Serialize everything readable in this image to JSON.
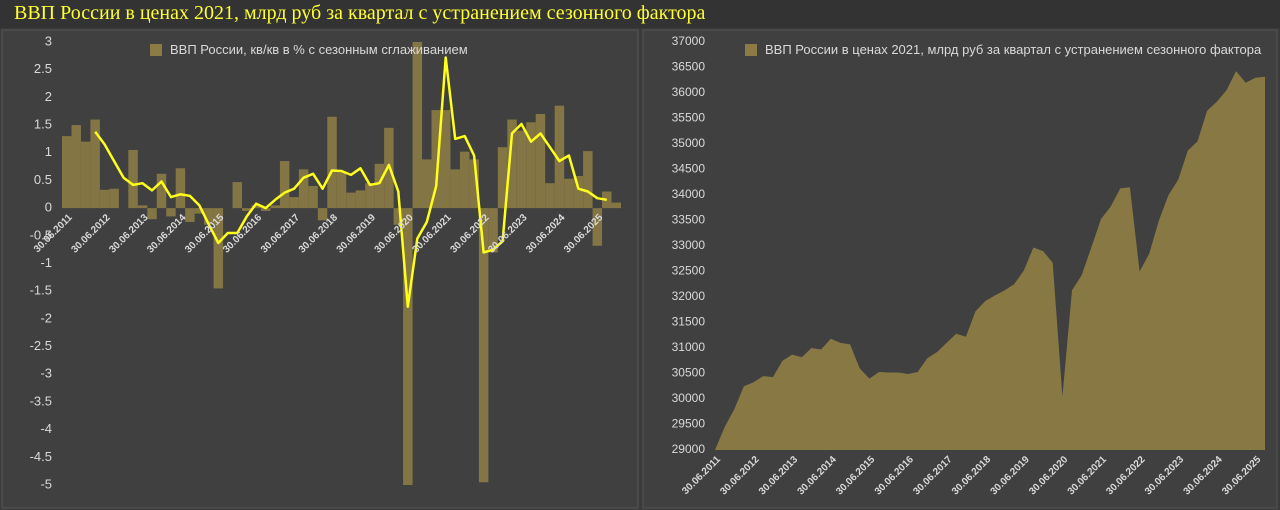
{
  "header": {
    "title": "ВВП России в ценах 2021, млрд руб за квартал с устранением сезонного фактора"
  },
  "chart_data": [
    {
      "type": "bar",
      "categories": [
        "30.06.2011",
        null,
        null,
        null,
        "30.06.2012",
        null,
        null,
        null,
        "30.06.2013",
        null,
        null,
        null,
        "30.06.2014",
        null,
        null,
        null,
        "30.06.2015",
        null,
        null,
        null,
        "30.06.2016",
        null,
        null,
        null,
        "30.06.2017",
        null,
        null,
        null,
        "30.06.2018",
        null,
        null,
        null,
        "30.06.2019",
        null,
        null,
        null,
        "30.06.2020",
        null,
        null,
        null,
        "30.06.2021",
        null,
        null,
        null,
        "30.06.2022",
        null,
        null,
        null,
        "30.06.2023",
        null,
        null,
        null,
        "30.06.2024",
        null,
        null,
        null,
        "30.06.2025",
        null,
        null
      ],
      "series": [
        {
          "name": "ВВП России, кв/кв в % с сезонным сглаживанием",
          "type": "bar",
          "color": "#8c7b45",
          "values": [
            1.3,
            1.5,
            1.2,
            1.6,
            0.33,
            0.35,
            0.0,
            1.05,
            0.05,
            -0.2,
            0.62,
            -0.15,
            0.72,
            -0.25,
            -0.1,
            -0.3,
            -1.45,
            0.0,
            0.47,
            -0.05,
            0.05,
            -0.05,
            0.05,
            0.85,
            0.2,
            0.7,
            0.4,
            -0.22,
            1.65,
            0.65,
            0.28,
            0.32,
            0.45,
            0.8,
            1.45,
            -0.3,
            -5.0,
            3.0,
            0.88,
            1.77,
            1.77,
            0.7,
            1.02,
            0.88,
            -4.95,
            -0.8,
            1.1,
            1.6,
            1.4,
            1.55,
            1.7,
            0.45,
            1.85,
            0.53,
            0.58,
            1.03,
            -0.68,
            0.3,
            0.1
          ]
        },
        {
          "type": "line",
          "color": "#ffff1a",
          "values": [
            null,
            null,
            null,
            1.38,
            1.15,
            0.85,
            0.55,
            0.42,
            0.45,
            0.32,
            0.48,
            0.2,
            0.25,
            0.22,
            0.05,
            -0.3,
            -0.63,
            -0.45,
            -0.45,
            -0.15,
            0.08,
            0.0,
            0.15,
            0.28,
            0.35,
            0.55,
            0.62,
            0.35,
            0.68,
            0.67,
            0.6,
            0.72,
            0.42,
            0.45,
            0.78,
            0.3,
            -1.78,
            -0.55,
            -0.25,
            0.4,
            2.72,
            1.25,
            1.3,
            0.95,
            -0.8,
            -0.75,
            -0.6,
            1.35,
            1.52,
            1.2,
            1.35,
            1.1,
            0.85,
            0.95,
            0.35,
            0.3,
            0.18,
            0.15,
            null
          ]
        }
      ],
      "ylim": [
        -5,
        3
      ],
      "yticks": [
        -5,
        -4.5,
        -4,
        -3.5,
        -3,
        -2.5,
        -2,
        -1.5,
        -1,
        -0.5,
        0,
        0.5,
        1,
        1.5,
        2,
        2.5,
        3
      ],
      "grid": false,
      "legend": "top"
    },
    {
      "type": "area",
      "categories": [
        "30.06.2011",
        null,
        null,
        null,
        "30.06.2012",
        null,
        null,
        null,
        "30.06.2013",
        null,
        null,
        null,
        "30.06.2014",
        null,
        null,
        null,
        "30.06.2015",
        null,
        null,
        null,
        "30.06.2016",
        null,
        null,
        null,
        "30.06.2017",
        null,
        null,
        null,
        "30.06.2018",
        null,
        null,
        null,
        "30.06.2019",
        null,
        null,
        null,
        "30.06.2020",
        null,
        null,
        null,
        "30.06.2021",
        null,
        null,
        null,
        "30.06.2022",
        null,
        null,
        null,
        "30.06.2023",
        null,
        null,
        null,
        "30.06.2024",
        null,
        null,
        null,
        "30.06.2025",
        null
      ],
      "series": [
        {
          "name": "ВВП России в ценах 2021, млрд руб за квартал с устранением сезонного фактора",
          "color": "#8c7b45",
          "values": [
            29000,
            29450,
            29800,
            30250,
            30330,
            30450,
            30430,
            30750,
            30870,
            30820,
            31000,
            30970,
            31180,
            31100,
            31070,
            30600,
            30400,
            30530,
            30520,
            30520,
            30490,
            30530,
            30800,
            30920,
            31100,
            31280,
            31220,
            31720,
            31920,
            32030,
            32130,
            32250,
            32520,
            32970,
            32900,
            32670,
            30050,
            32130,
            32430,
            32970,
            33530,
            33770,
            34130,
            34150,
            32500,
            32850,
            33500,
            34000,
            34300,
            34870,
            35050,
            35650,
            35830,
            36050,
            36430,
            36200,
            36300,
            36320
          ]
        }
      ],
      "ylim": [
        29000,
        37000
      ],
      "yticks": [
        29000,
        29500,
        30000,
        30500,
        31000,
        31500,
        32000,
        32500,
        33000,
        33500,
        34000,
        34500,
        35000,
        35500,
        36000,
        36500,
        37000
      ],
      "grid": false,
      "legend": "top"
    }
  ]
}
